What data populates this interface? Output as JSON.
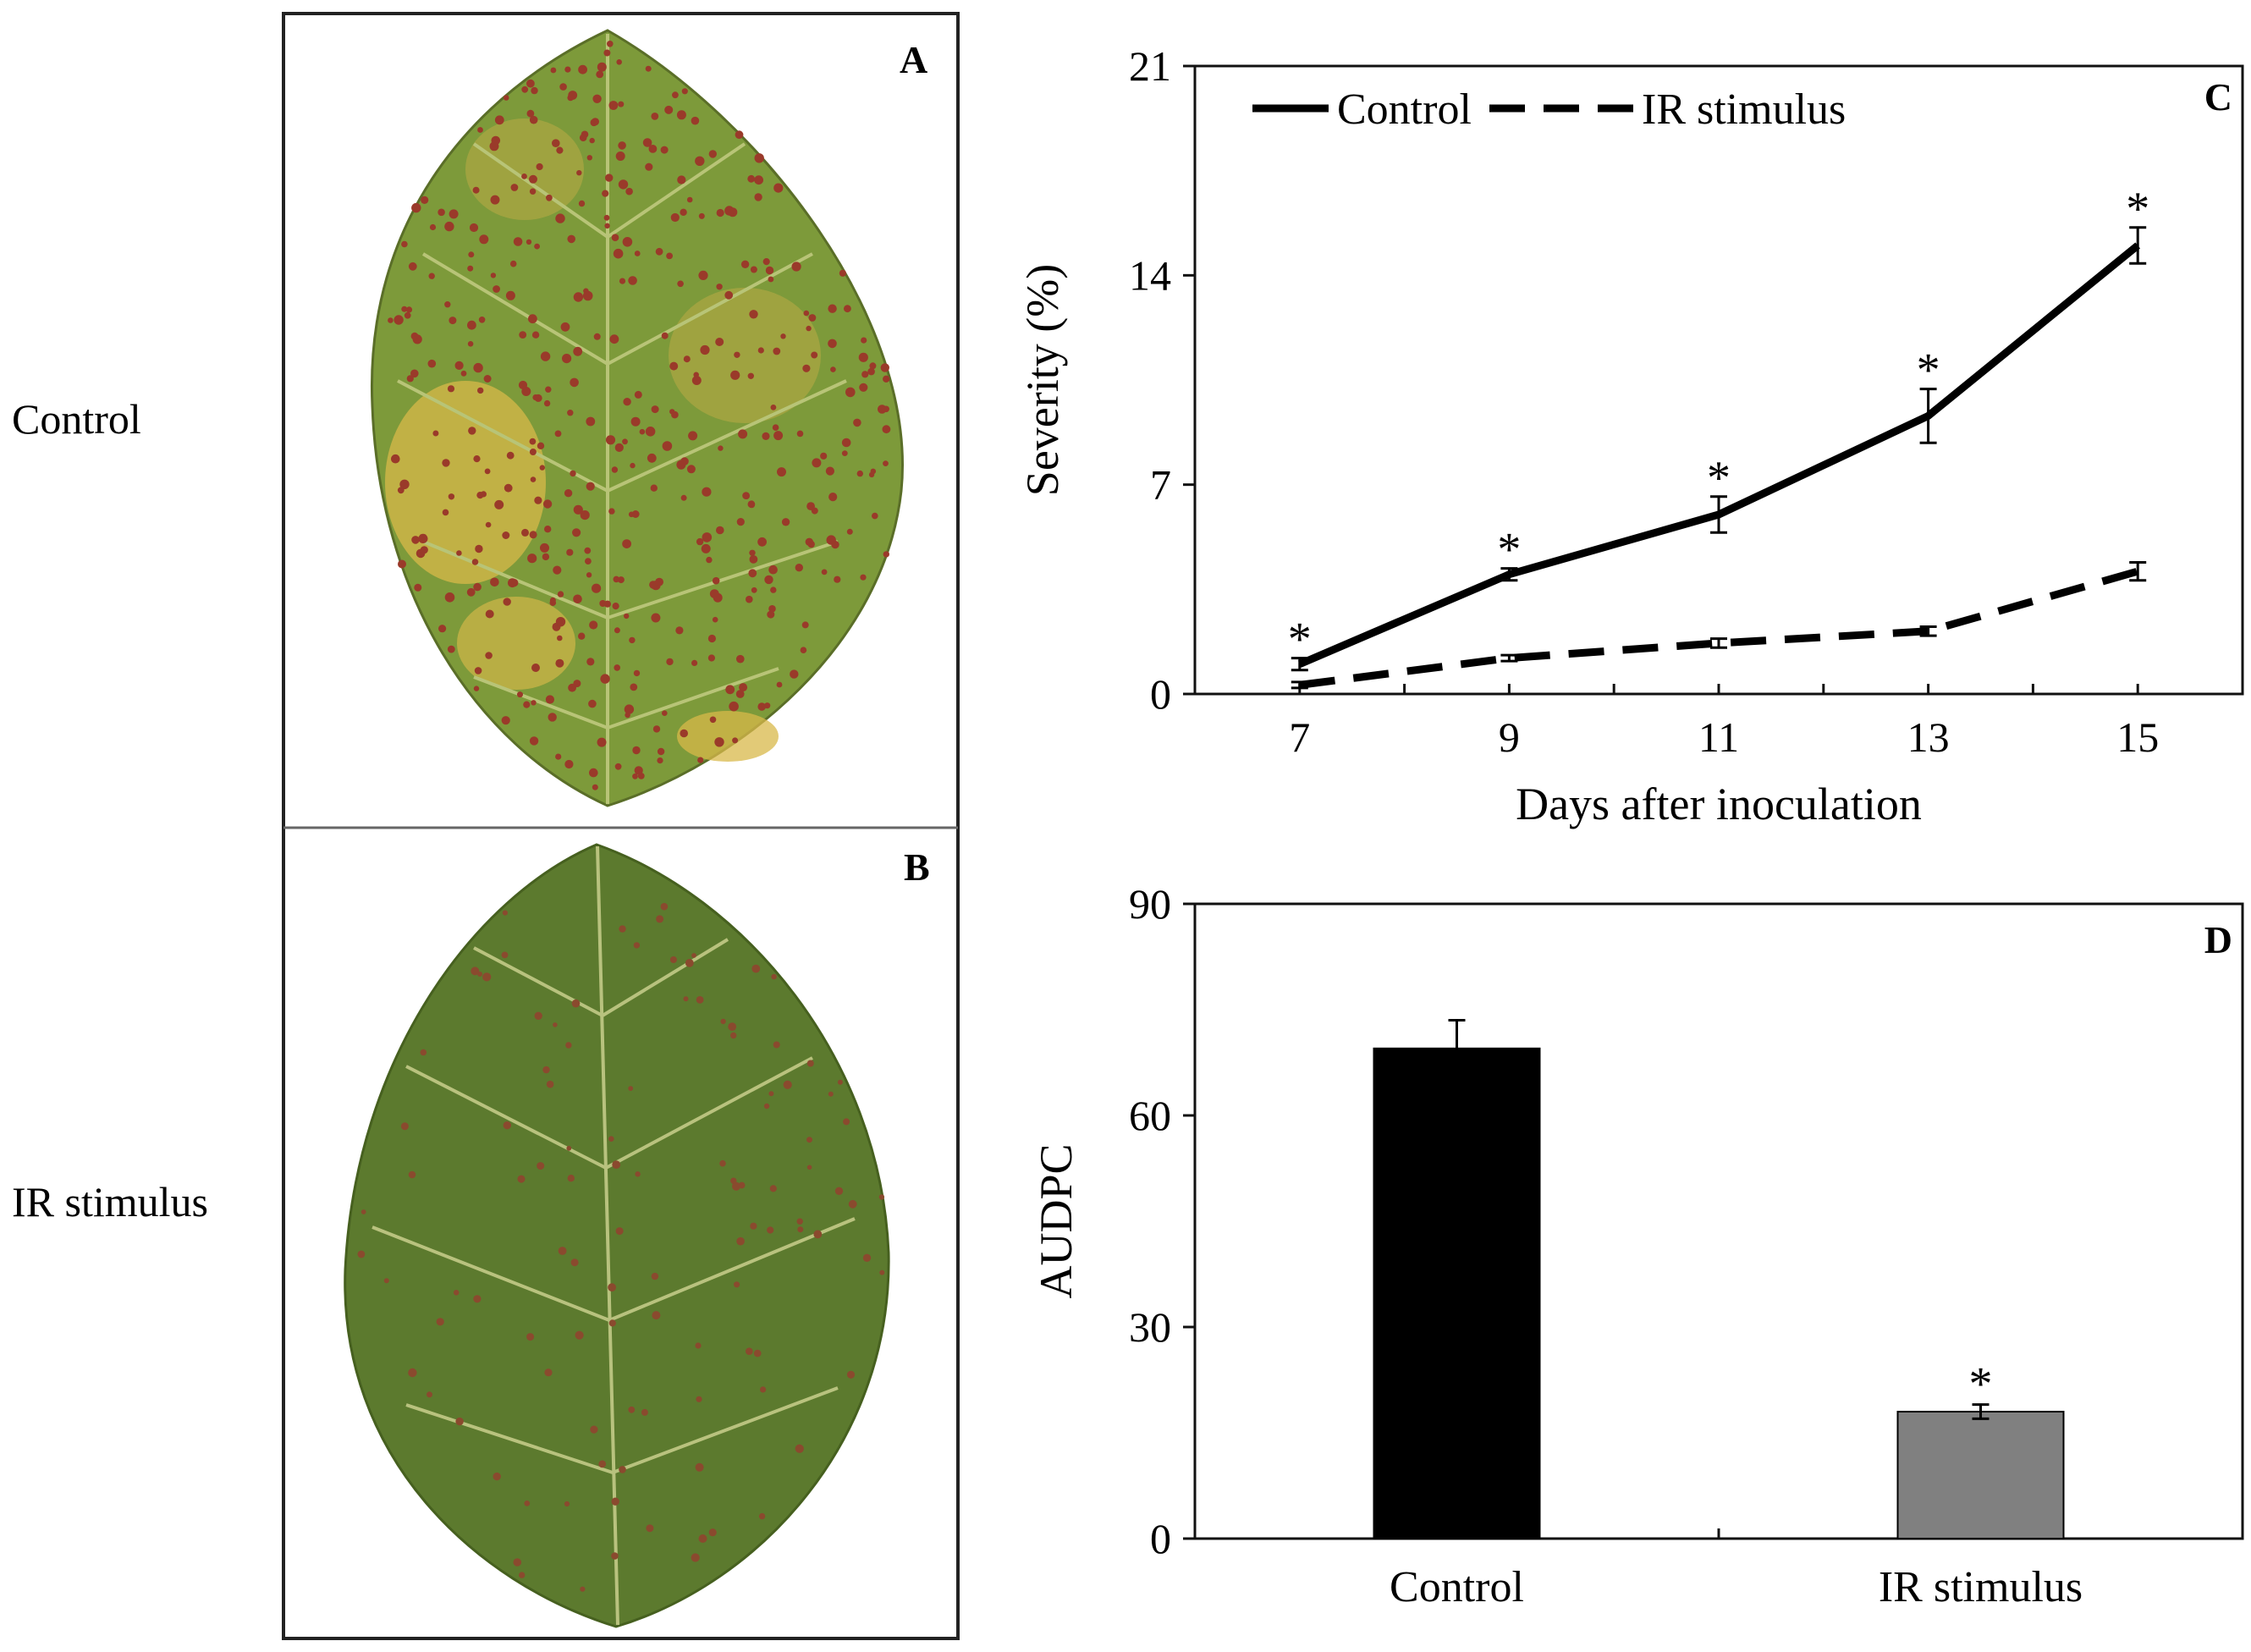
{
  "row_labels": {
    "top": "Control",
    "bottom": "IR stimulus"
  },
  "panels": {
    "A": "A",
    "B": "B",
    "C": "C",
    "D": "D"
  },
  "colors": {
    "leaf_a_fill": "#7d9a3a",
    "leaf_a_yellow": "#d8b84a",
    "leaf_a_spot": "#9a3a2a",
    "leaf_b_fill": "#5c7a2e",
    "leaf_b_spot": "#8a4a2e",
    "vein": "#c9cf8c",
    "bar_control": "#000000",
    "bar_ir": "#808080"
  },
  "chart_data": [
    {
      "type": "line",
      "panel": "C",
      "x": [
        7,
        9,
        11,
        13,
        15
      ],
      "series": [
        {
          "name": "Control",
          "style": "solid",
          "values": [
            1.0,
            4.0,
            6.0,
            9.3,
            15.0
          ],
          "errors": [
            0.2,
            0.2,
            0.6,
            0.9,
            0.6
          ],
          "significance": [
            "*",
            "*",
            "*",
            "*",
            "*"
          ]
        },
        {
          "name": "IR stimulus",
          "style": "dashed",
          "values": [
            0.3,
            1.2,
            1.7,
            2.1,
            4.1
          ],
          "errors": [
            0.1,
            0.1,
            0.15,
            0.15,
            0.3
          ]
        }
      ],
      "xlabel": "Days after inoculation",
      "ylabel": "Severity (%)",
      "xlim": [
        6,
        16
      ],
      "ylim": [
        0,
        21
      ],
      "xticks": [
        7,
        9,
        11,
        13,
        15
      ],
      "yticks": [
        0,
        7,
        14,
        21
      ],
      "legend": "top-left"
    },
    {
      "type": "bar",
      "panel": "D",
      "categories": [
        "Control",
        "IR stimulus"
      ],
      "values": [
        69.5,
        18
      ],
      "errors": [
        4,
        1
      ],
      "significance": [
        "",
        "*"
      ],
      "ylabel": "AUDPC",
      "ylim": [
        0,
        90
      ],
      "yticks": [
        0,
        30,
        60,
        90
      ]
    }
  ]
}
